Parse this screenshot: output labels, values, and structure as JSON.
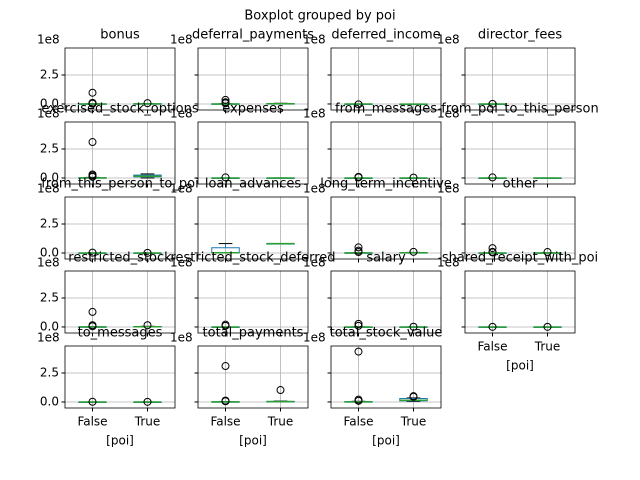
{
  "suptitle": "Boxplot grouped by poi",
  "chart_data": [
    {
      "type": "box",
      "title": "bonus",
      "offset_text": "1e8",
      "ylim": [
        -0.52,
        4.83
      ],
      "yticks": [
        {
          "value": 0,
          "label": "0.0"
        },
        {
          "value": 2.5,
          "label": "2.5"
        }
      ],
      "show_ytick_labels": true,
      "grid": true,
      "box_color": "#1f77b4",
      "median_color": "#2ca02c",
      "boxes": [
        {
          "stats": [
            0,
            0,
            0.003,
            0.01,
            0.02
          ],
          "fliers": [
            0.97,
            0.1,
            0.05,
            0.03
          ]
        },
        {
          "stats": [
            0.002,
            0.006,
            0.01,
            0.02,
            0.04
          ],
          "fliers": [
            0.07
          ]
        }
      ]
    },
    {
      "type": "box",
      "title": "deferral_payments",
      "offset_text": "1e8",
      "ylim": [
        -0.52,
        4.83
      ],
      "yticks": [
        {
          "value": 0,
          "label": "0.0"
        },
        {
          "value": 2.5,
          "label": "2.5"
        }
      ],
      "show_ytick_labels": false,
      "grid": true,
      "box_color": "#1f77b4",
      "median_color": "#2ca02c",
      "boxes": [
        {
          "stats": [
            0,
            0,
            0.002,
            0.01,
            0.02
          ],
          "fliers": [
            0.35,
            0.15,
            0.06
          ]
        },
        {
          "stats": [
            0,
            0.01,
            0.02,
            0.03,
            0.06
          ],
          "fliers": []
        }
      ]
    },
    {
      "type": "box",
      "title": "deferred_income",
      "offset_text": "1e8",
      "ylim": [
        -0.52,
        4.83
      ],
      "yticks": [
        {
          "value": 0,
          "label": "0.0"
        },
        {
          "value": 2.5,
          "label": "2.5"
        }
      ],
      "show_ytick_labels": false,
      "grid": true,
      "box_color": "#1f77b4",
      "median_color": "#2ca02c",
      "boxes": [
        {
          "stats": [
            -0.01,
            -0.005,
            -0.001,
            0,
            0
          ],
          "fliers": [
            -0.03
          ]
        },
        {
          "stats": [
            -0.03,
            -0.02,
            -0.01,
            -0.004,
            0
          ],
          "fliers": []
        }
      ]
    },
    {
      "type": "box",
      "title": "director_fees",
      "offset_text": "1e8",
      "ylim": [
        -0.52,
        4.83
      ],
      "yticks": [
        {
          "value": 0,
          "label": "0.0"
        },
        {
          "value": 2.5,
          "label": "2.5"
        }
      ],
      "show_ytick_labels": false,
      "grid": true,
      "box_color": "#1f77b4",
      "median_color": "#2ca02c",
      "boxes": [
        {
          "stats": [
            0,
            0,
            0,
            0.001,
            0.001
          ],
          "fliers": [
            0.01
          ]
        },
        null
      ]
    },
    {
      "type": "box",
      "title": "exercised_stock_options",
      "offset_text": "1e8",
      "ylim": [
        -0.52,
        4.83
      ],
      "yticks": [
        {
          "value": 0,
          "label": "0.0"
        },
        {
          "value": 2.5,
          "label": "2.5"
        }
      ],
      "show_ytick_labels": true,
      "grid": true,
      "box_color": "#1f77b4",
      "median_color": "#2ca02c",
      "boxes": [
        {
          "stats": [
            0,
            0.005,
            0.01,
            0.02,
            0.05
          ],
          "fliers": [
            3.1,
            0.3,
            0.2,
            0.1
          ]
        },
        {
          "stats": [
            0,
            0.1,
            0.15,
            0.25,
            0.35
          ],
          "fliers": []
        }
      ]
    },
    {
      "type": "box",
      "title": "expenses",
      "offset_text": "1e8",
      "ylim": [
        -0.52,
        4.83
      ],
      "yticks": [
        {
          "value": 0,
          "label": "0.0"
        },
        {
          "value": 2.5,
          "label": "2.5"
        }
      ],
      "show_ytick_labels": false,
      "grid": true,
      "box_color": "#1f77b4",
      "median_color": "#2ca02c",
      "boxes": [
        {
          "stats": [
            0,
            0,
            0.0005,
            0.001,
            0.002
          ],
          "fliers": [
            0.05
          ]
        },
        {
          "stats": [
            0,
            0.0005,
            0.001,
            0.002,
            0.003
          ],
          "fliers": []
        }
      ]
    },
    {
      "type": "box",
      "title": "from_messages",
      "offset_text": "1e8",
      "ylim": [
        -0.52,
        4.83
      ],
      "yticks": [
        {
          "value": 0,
          "label": "0.0"
        },
        {
          "value": 2.5,
          "label": "2.5"
        }
      ],
      "show_ytick_labels": false,
      "grid": true,
      "box_color": "#1f77b4",
      "median_color": "#2ca02c",
      "boxes": [
        {
          "stats": [
            0,
            0,
            0,
            0,
            0.001
          ],
          "fliers": [
            0.1,
            0.05
          ]
        },
        {
          "stats": [
            0,
            0,
            0,
            0,
            0.001
          ],
          "fliers": [
            0.03
          ]
        }
      ]
    },
    {
      "type": "box",
      "title": "from_poi_to_this_person",
      "offset_text": "1e8",
      "ylim": [
        -0.52,
        4.83
      ],
      "yticks": [
        {
          "value": 0,
          "label": "0.0"
        },
        {
          "value": 2.5,
          "label": "2.5"
        }
      ],
      "show_ytick_labels": false,
      "grid": true,
      "box_color": "#1f77b4",
      "median_color": "#2ca02c",
      "boxes": [
        {
          "stats": [
            0,
            0,
            0,
            0,
            0.001
          ],
          "fliers": [
            0.05
          ]
        },
        {
          "stats": [
            0,
            0,
            0,
            0,
            0.001
          ],
          "fliers": []
        }
      ]
    },
    {
      "type": "box",
      "title": "from_this_person_to_poi",
      "offset_text": "1e8",
      "ylim": [
        -0.52,
        4.83
      ],
      "yticks": [
        {
          "value": 0,
          "label": "0.0"
        },
        {
          "value": 2.5,
          "label": "2.5"
        }
      ],
      "show_ytick_labels": true,
      "grid": true,
      "box_color": "#1f77b4",
      "median_color": "#2ca02c",
      "boxes": [
        {
          "stats": [
            0,
            0,
            0,
            0,
            0.001
          ],
          "fliers": [
            0.03
          ]
        },
        {
          "stats": [
            0,
            0,
            0,
            0,
            0.001
          ],
          "fliers": [
            0.01
          ]
        }
      ]
    },
    {
      "type": "box",
      "title": "loan_advances",
      "offset_text": "1e8",
      "ylim": [
        -0.52,
        4.83
      ],
      "yticks": [
        {
          "value": 0,
          "label": "0.0"
        },
        {
          "value": 2.5,
          "label": "2.5"
        }
      ],
      "show_ytick_labels": false,
      "grid": true,
      "box_color": "#1f77b4",
      "median_color": "#2ca02c",
      "boxes": [
        {
          "stats": [
            0.004,
            0.01,
            0.02,
            0.45,
            0.81
          ],
          "fliers": []
        },
        {
          "stats": [
            0.81,
            0.81,
            0.81,
            0.81,
            0.81
          ],
          "fliers": []
        }
      ]
    },
    {
      "type": "box",
      "title": "long_term_incentive",
      "offset_text": "1e8",
      "ylim": [
        -0.52,
        4.83
      ],
      "yticks": [
        {
          "value": 0,
          "label": "0.0"
        },
        {
          "value": 2.5,
          "label": "2.5"
        }
      ],
      "show_ytick_labels": false,
      "grid": true,
      "box_color": "#1f77b4",
      "median_color": "#2ca02c",
      "boxes": [
        {
          "stats": [
            0,
            0.003,
            0.005,
            0.01,
            0.02
          ],
          "fliers": [
            0.48,
            0.2,
            0.08
          ]
        },
        {
          "stats": [
            0,
            0.01,
            0.02,
            0.03,
            0.05
          ],
          "fliers": [
            0.1
          ]
        }
      ]
    },
    {
      "type": "box",
      "title": "other",
      "offset_text": "1e8",
      "ylim": [
        -0.52,
        4.83
      ],
      "yticks": [
        {
          "value": 0,
          "label": "0.0"
        },
        {
          "value": 2.5,
          "label": "2.5"
        }
      ],
      "show_ytick_labels": false,
      "grid": true,
      "box_color": "#1f77b4",
      "median_color": "#2ca02c",
      "boxes": [
        {
          "stats": [
            0,
            0,
            0.001,
            0.005,
            0.01
          ],
          "fliers": [
            0.42,
            0.1,
            0.05
          ]
        },
        {
          "stats": [
            0,
            0,
            0.002,
            0.01,
            0.02
          ],
          "fliers": [
            0.08
          ]
        }
      ]
    },
    {
      "type": "box",
      "title": "restricted_stock",
      "offset_text": "1e8",
      "ylim": [
        -0.52,
        4.83
      ],
      "yticks": [
        {
          "value": 0,
          "label": "0.0"
        },
        {
          "value": 2.5,
          "label": "2.5"
        }
      ],
      "show_ytick_labels": true,
      "grid": true,
      "box_color": "#1f77b4",
      "median_color": "#2ca02c",
      "boxes": [
        {
          "stats": [
            0,
            0.002,
            0.005,
            0.01,
            0.02
          ],
          "fliers": [
            1.3,
            0.15,
            0.06
          ]
        },
        {
          "stats": [
            0,
            0.01,
            0.02,
            0.04,
            0.06
          ],
          "fliers": [
            0.15
          ]
        }
      ]
    },
    {
      "type": "box",
      "title": "restricted_stock_deferred",
      "offset_text": "1e8",
      "ylim": [
        -0.52,
        4.83
      ],
      "yticks": [
        {
          "value": 0,
          "label": "0.0"
        },
        {
          "value": 2.5,
          "label": "2.5"
        }
      ],
      "show_ytick_labels": false,
      "grid": true,
      "box_color": "#1f77b4",
      "median_color": "#2ca02c",
      "boxes": [
        {
          "stats": [
            -0.01,
            -0.005,
            -0.001,
            0,
            0.001
          ],
          "fliers": [
            0.2,
            0.1
          ]
        },
        null
      ]
    },
    {
      "type": "box",
      "title": "salary",
      "offset_text": "1e8",
      "ylim": [
        -0.52,
        4.83
      ],
      "yticks": [
        {
          "value": 0,
          "label": "0.0"
        },
        {
          "value": 2.5,
          "label": "2.5"
        }
      ],
      "show_ytick_labels": false,
      "grid": true,
      "box_color": "#1f77b4",
      "median_color": "#2ca02c",
      "boxes": [
        {
          "stats": [
            0,
            0.001,
            0.002,
            0.003,
            0.005
          ],
          "fliers": [
            0.27,
            0.1
          ]
        },
        {
          "stats": [
            0.001,
            0.002,
            0.003,
            0.004,
            0.006
          ],
          "fliers": [
            0.02
          ]
        }
      ]
    },
    {
      "type": "box",
      "title": "shared_receipt_with_poi",
      "offset_text": "1e8",
      "ylim": [
        -0.52,
        4.83
      ],
      "yticks": [
        {
          "value": 0,
          "label": "0.0"
        },
        {
          "value": 2.5,
          "label": "2.5"
        }
      ],
      "show_ytick_labels": false,
      "grid": true,
      "box_color": "#1f77b4",
      "median_color": "#2ca02c",
      "categories": [
        "False",
        "True"
      ],
      "xlabel": "[poi]",
      "boxes": [
        {
          "stats": [
            0,
            0,
            0,
            0,
            0.001
          ],
          "fliers": [
            0.01
          ]
        },
        {
          "stats": [
            0,
            0,
            0,
            0,
            0.001
          ],
          "fliers": [
            0.01
          ]
        }
      ]
    },
    {
      "type": "box",
      "title": "to_messages",
      "offset_text": "1e8",
      "ylim": [
        -0.52,
        4.83
      ],
      "yticks": [
        {
          "value": 0,
          "label": "0.0"
        },
        {
          "value": 2.5,
          "label": "2.5"
        }
      ],
      "show_ytick_labels": true,
      "grid": true,
      "box_color": "#1f77b4",
      "median_color": "#2ca02c",
      "categories": [
        "False",
        "True"
      ],
      "xlabel": "[poi]",
      "boxes": [
        {
          "stats": [
            0,
            0,
            0,
            0,
            0.001
          ],
          "fliers": [
            0.02
          ]
        },
        {
          "stats": [
            0,
            0,
            0,
            0,
            0.001
          ],
          "fliers": [
            0.01
          ]
        }
      ]
    },
    {
      "type": "box",
      "title": "total_payments",
      "offset_text": "1e8",
      "ylim": [
        -0.52,
        4.83
      ],
      "yticks": [
        {
          "value": 0,
          "label": "0.0"
        },
        {
          "value": 2.5,
          "label": "2.5"
        }
      ],
      "show_ytick_labels": false,
      "grid": true,
      "box_color": "#1f77b4",
      "median_color": "#2ca02c",
      "categories": [
        "False",
        "True"
      ],
      "xlabel": "[poi]",
      "boxes": [
        {
          "stats": [
            0,
            0.003,
            0.01,
            0.02,
            0.04
          ],
          "fliers": [
            3.1,
            0.12,
            0.06
          ]
        },
        {
          "stats": [
            0.01,
            0.02,
            0.03,
            0.05,
            0.08
          ],
          "fliers": [
            1.03
          ]
        }
      ]
    },
    {
      "type": "box",
      "title": "total_stock_value",
      "offset_text": "1e8",
      "ylim": [
        -0.52,
        4.83
      ],
      "yticks": [
        {
          "value": 0,
          "label": "0.0"
        },
        {
          "value": 2.5,
          "label": "2.5"
        }
      ],
      "show_ytick_labels": false,
      "grid": true,
      "box_color": "#1f77b4",
      "median_color": "#2ca02c",
      "categories": [
        "False",
        "True"
      ],
      "xlabel": "[poi]",
      "boxes": [
        {
          "stats": [
            0,
            0.005,
            0.01,
            0.03,
            0.06
          ],
          "fliers": [
            4.35,
            0.2,
            0.1
          ]
        },
        {
          "stats": [
            0.05,
            0.1,
            0.15,
            0.3,
            0.35
          ],
          "fliers": [
            0.5,
            0.45
          ]
        }
      ]
    }
  ]
}
